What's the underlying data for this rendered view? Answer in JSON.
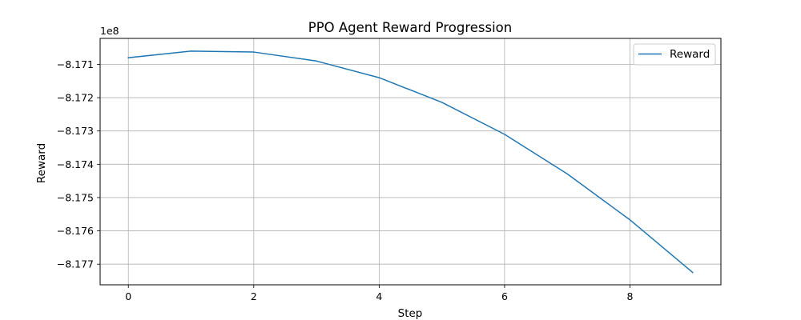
{
  "chart_data": {
    "type": "line",
    "title": "PPO Agent Reward Progression",
    "xlabel": "Step",
    "ylabel": "Reward",
    "y_offset_text": "1e8",
    "xlim": [
      -0.45,
      9.45
    ],
    "ylim": [
      -8.17762,
      -8.17022
    ],
    "x_ticks": [
      0,
      2,
      4,
      6,
      8
    ],
    "x_tick_labels": [
      "0",
      "2",
      "4",
      "6",
      "8"
    ],
    "y_ticks": [
      -8.171,
      -8.172,
      -8.173,
      -8.174,
      -8.175,
      -8.176,
      -8.177
    ],
    "y_tick_labels": [
      "−8.171",
      "−8.172",
      "−8.173",
      "−8.174",
      "−8.175",
      "−8.176",
      "−8.177"
    ],
    "grid": true,
    "legend_position": "upper right",
    "series": [
      {
        "name": "Reward",
        "color": "#1f77b4",
        "x": [
          0,
          1,
          2,
          3,
          4,
          5,
          6,
          7,
          8,
          9
        ],
        "values": [
          -8.1708,
          -8.1706,
          -8.17063,
          -8.1709,
          -8.1714,
          -8.17214,
          -8.1731,
          -8.17429,
          -8.17567,
          -8.17725
        ]
      }
    ]
  }
}
